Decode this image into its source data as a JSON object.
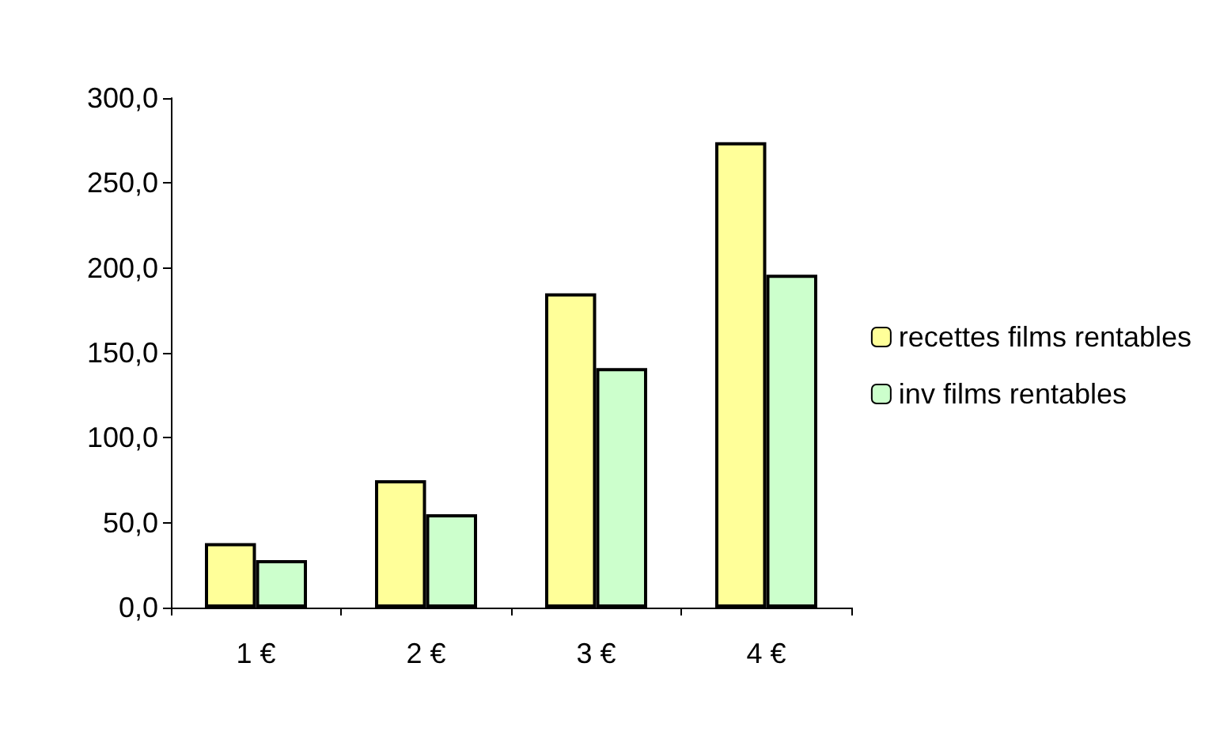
{
  "chart_data": {
    "type": "bar",
    "categories": [
      "1 €",
      "2 €",
      "3 €",
      "4 €"
    ],
    "series": [
      {
        "name": "recettes films rentables",
        "color": "#ffff99",
        "values": [
          38,
          75,
          185,
          274
        ]
      },
      {
        "name": "inv films rentables",
        "color": "#ccffcc",
        "values": [
          28,
          55,
          141,
          196
        ]
      }
    ],
    "ylim": [
      0,
      300
    ],
    "yticks": [
      {
        "value": 0,
        "label": "0,0"
      },
      {
        "value": 50,
        "label": "50,0"
      },
      {
        "value": 100,
        "label": "100,0"
      },
      {
        "value": 150,
        "label": "150,0"
      },
      {
        "value": 200,
        "label": "200,0"
      },
      {
        "value": 250,
        "label": "250,0"
      },
      {
        "value": 300,
        "label": "300,0"
      }
    ],
    "grid": false,
    "legend": "right"
  }
}
